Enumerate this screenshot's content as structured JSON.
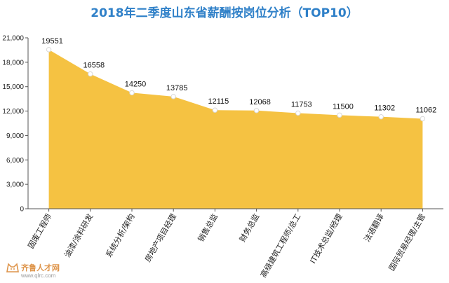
{
  "chart_data": {
    "type": "area",
    "title": "2018年二季度山东省薪酬按岗位分析（TOP10）",
    "xlabel": "",
    "ylabel": "",
    "categories": [
      "固废工程师",
      "油漆/涂料研发",
      "系统分析/架构",
      "房地产项目经理",
      "销售总监",
      "财务总监",
      "高级建筑工程师/总工",
      "IT技术总监/经理",
      "法语翻译",
      "国际贸易经理/主管"
    ],
    "values": [
      19551,
      16558,
      14250,
      13785,
      12115,
      12068,
      11753,
      11500,
      11302,
      11062
    ],
    "ylim": [
      0,
      21000
    ],
    "yticks": [
      0,
      3000,
      6000,
      9000,
      12000,
      15000,
      18000,
      21000
    ],
    "ytick_labels": [
      "0",
      "3,000",
      "6,000",
      "9,000",
      "12,000",
      "15,000",
      "18,000",
      "21,000"
    ],
    "grid": false,
    "legend": "none",
    "colors": {
      "title": "#2F80C8",
      "area": "#F5C242",
      "marker_fill": "#FFFFFF",
      "marker_stroke": "#D8D8D8",
      "axis": "#555555"
    }
  },
  "watermark": {
    "brand": "齐鲁人才网",
    "url": "www.qlrc.com",
    "icon": "fox-logo-icon"
  }
}
